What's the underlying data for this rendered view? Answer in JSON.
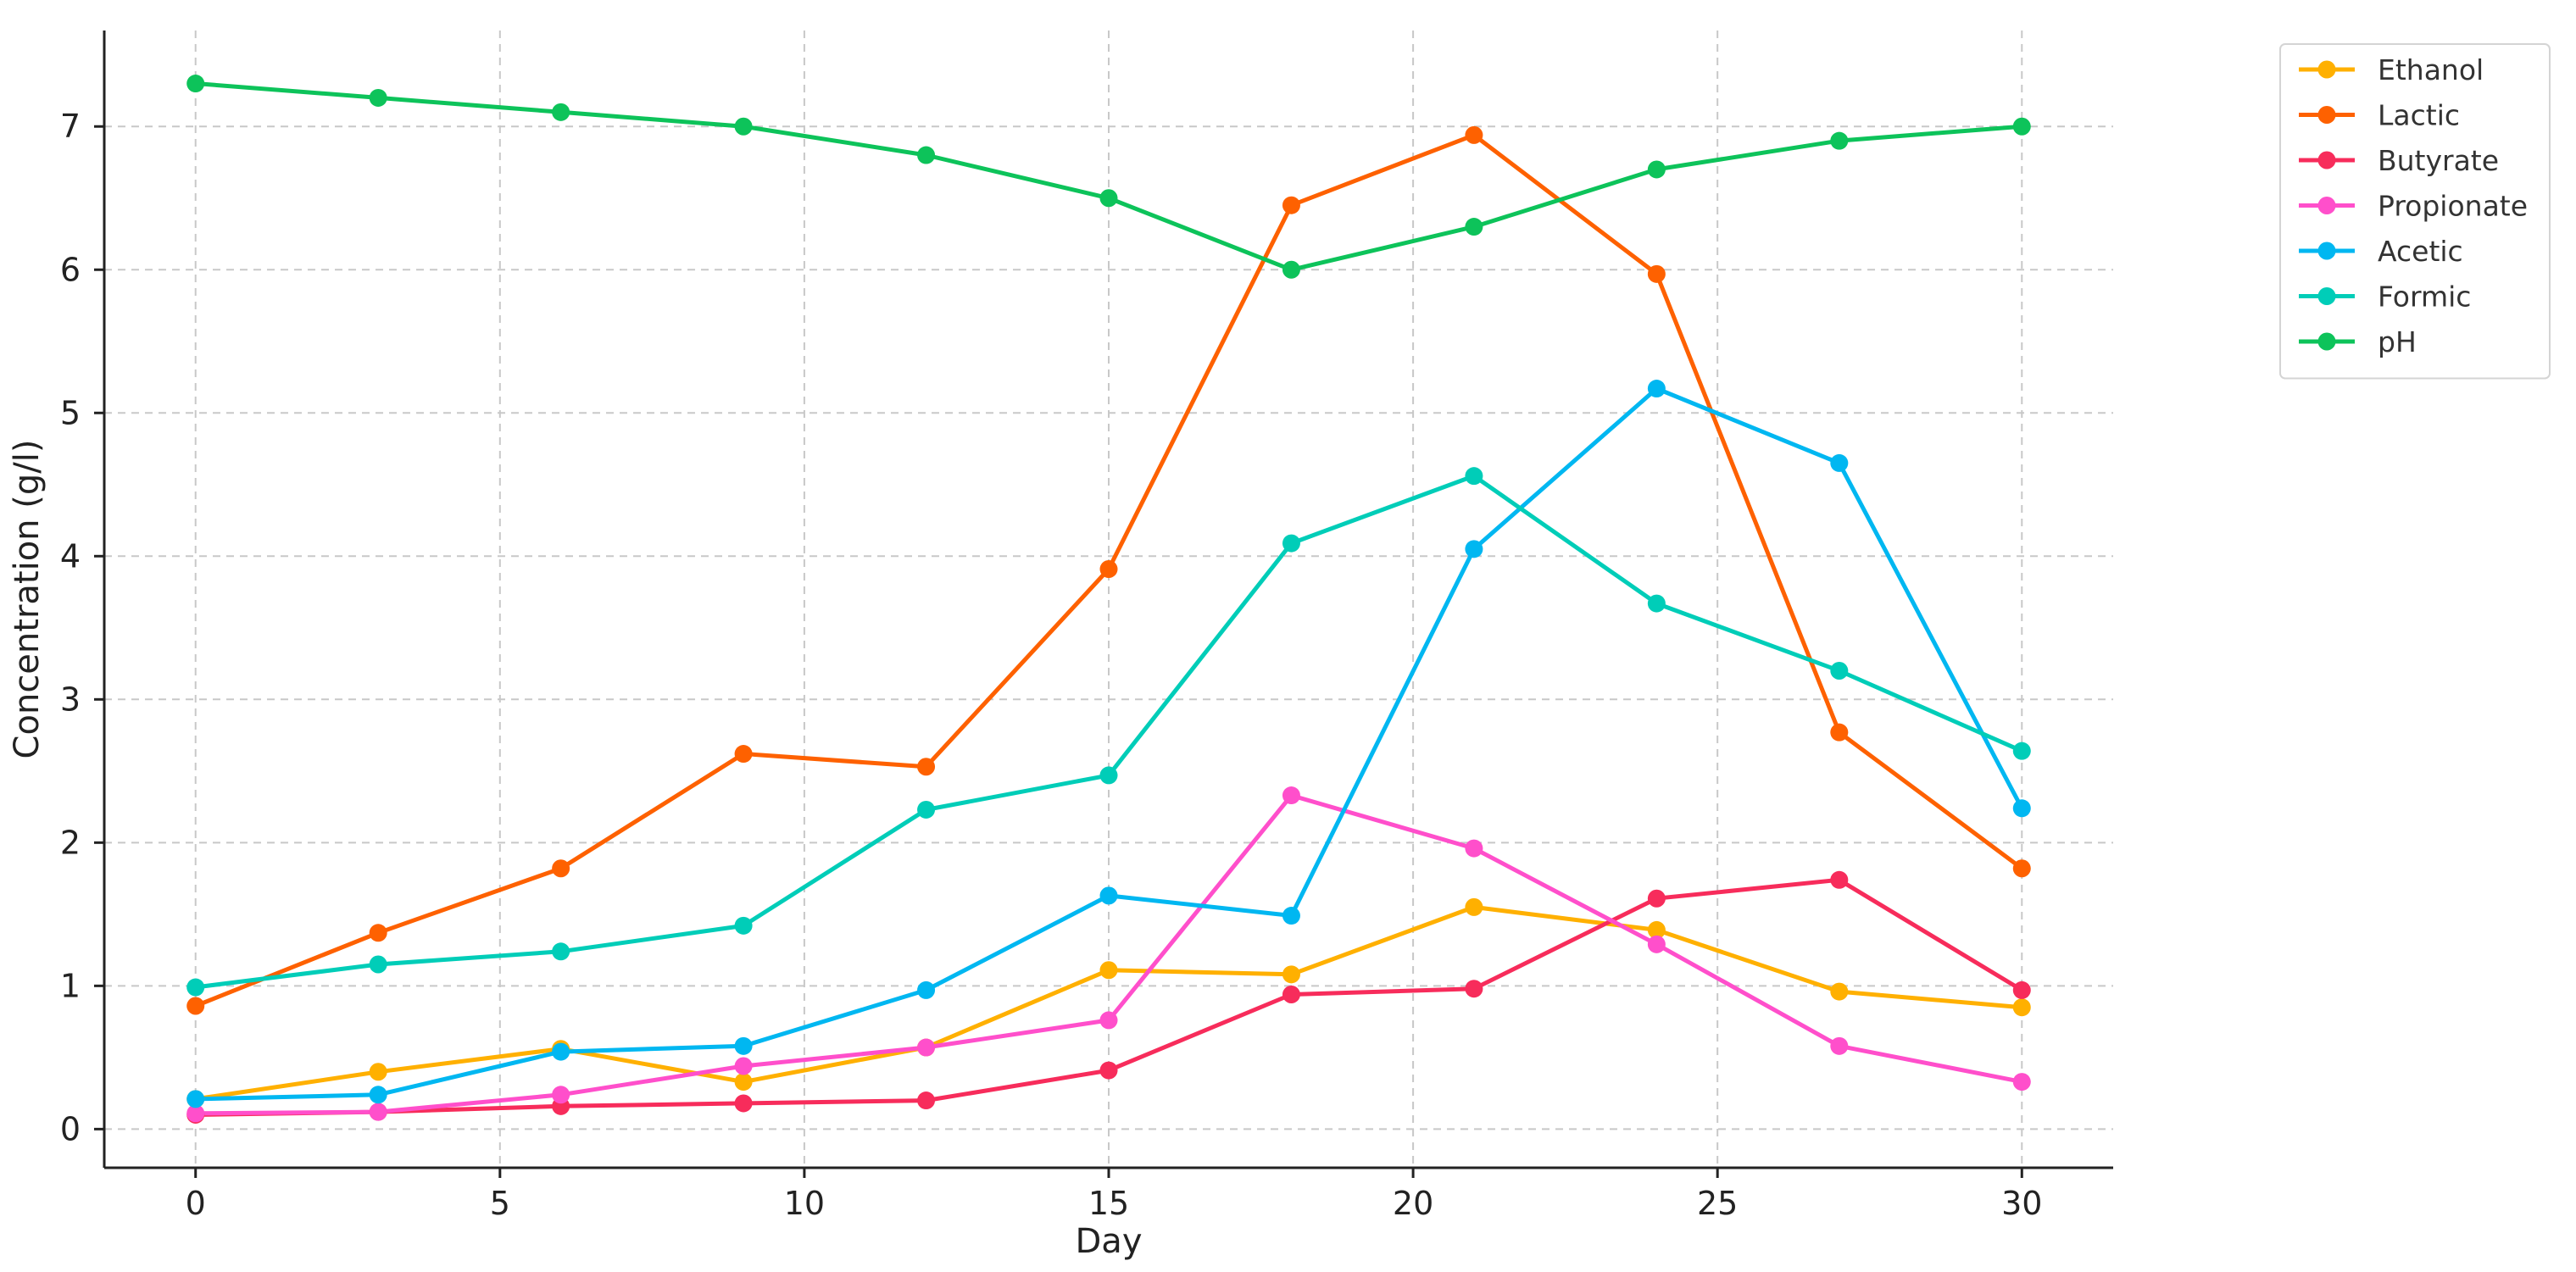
{
  "chart_data": {
    "type": "line",
    "title": "",
    "xlabel": "Day",
    "ylabel": "Concentration (g/l)",
    "x": [
      0,
      3,
      6,
      9,
      12,
      15,
      18,
      21,
      24,
      27,
      30
    ],
    "xlim": [
      -1.5,
      31.5
    ],
    "ylim": [
      -0.27,
      7.67
    ],
    "x_ticks": [
      0,
      5,
      10,
      15,
      20,
      25,
      30
    ],
    "y_ticks": [
      0,
      1,
      2,
      3,
      4,
      5,
      6,
      7
    ],
    "grid": true,
    "grid_style": "dashed",
    "legend_position": "outside-top-right",
    "series": [
      {
        "name": "Ethanol",
        "color": "#FFB000",
        "values": [
          0.21,
          0.4,
          0.56,
          0.33,
          0.57,
          1.11,
          1.08,
          1.55,
          1.39,
          0.96,
          0.85
        ]
      },
      {
        "name": "Lactic",
        "color": "#FE6100",
        "values": [
          0.86,
          1.37,
          1.82,
          2.62,
          2.53,
          3.91,
          6.45,
          6.94,
          5.97,
          2.77,
          1.82
        ]
      },
      {
        "name": "Butyrate",
        "color": "#F72C5B",
        "values": [
          0.1,
          0.12,
          0.16,
          0.18,
          0.2,
          0.41,
          0.94,
          0.98,
          1.61,
          1.74,
          0.97
        ]
      },
      {
        "name": "Propionate",
        "color": "#FF4FCB",
        "values": [
          0.11,
          0.12,
          0.24,
          0.44,
          0.57,
          0.76,
          2.33,
          1.96,
          1.29,
          0.58,
          0.33
        ]
      },
      {
        "name": "Acetic",
        "color": "#00B7F1",
        "values": [
          0.21,
          0.24,
          0.54,
          0.58,
          0.97,
          1.63,
          1.49,
          4.05,
          5.17,
          4.65,
          2.24
        ]
      },
      {
        "name": "Formic",
        "color": "#00CDB8",
        "values": [
          0.99,
          1.15,
          1.24,
          1.42,
          2.23,
          2.47,
          4.09,
          4.56,
          3.67,
          3.2,
          2.64
        ]
      },
      {
        "name": "pH",
        "color": "#0DC35A",
        "values": [
          7.3,
          7.2,
          7.1,
          7.0,
          6.8,
          6.5,
          6.0,
          6.3,
          6.7,
          6.9,
          7.0
        ]
      }
    ]
  }
}
